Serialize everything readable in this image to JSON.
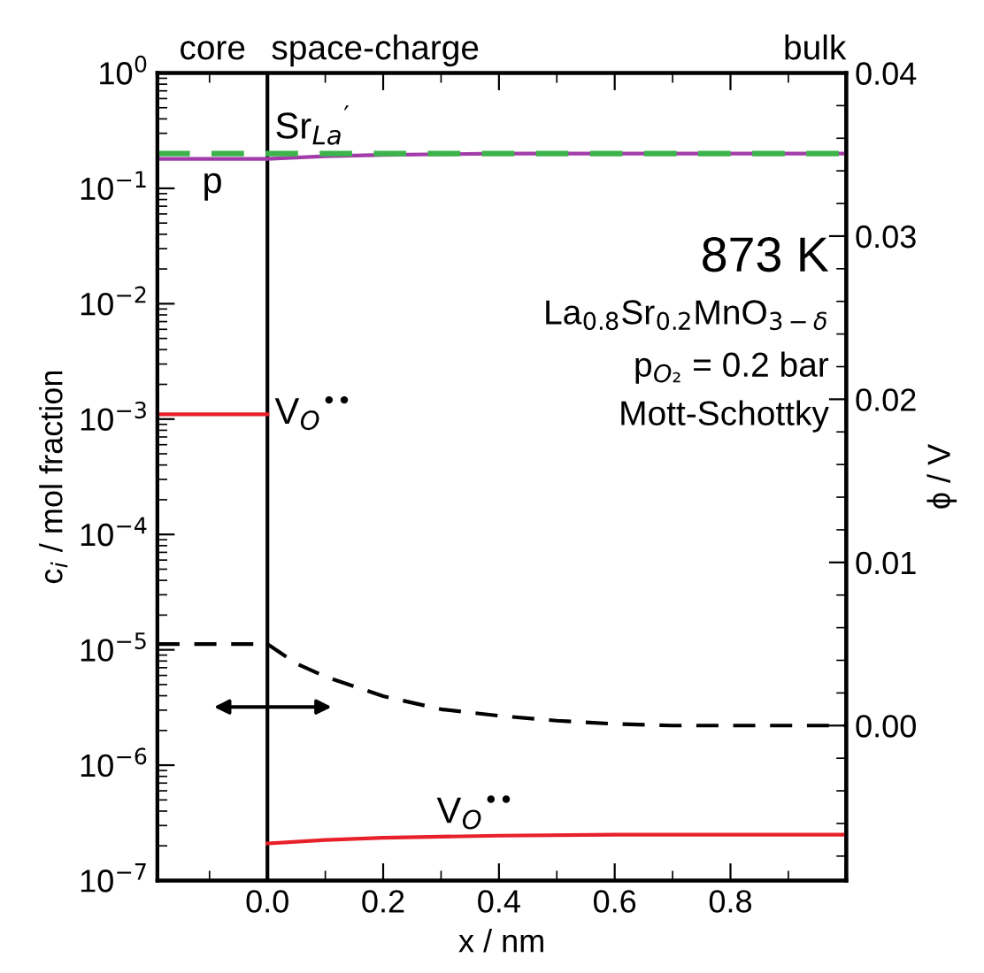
{
  "chart_data": {
    "type": "line",
    "xlabel": "x / nm",
    "ylabel": "c$_{i}$ / mol fraction",
    "y2label": "ϕ / V",
    "xlim": [
      -0.19,
      1.0
    ],
    "xticks": [
      {
        "value": 0.0,
        "label": "0.0"
      },
      0.2,
      0.4,
      0.6,
      0.8
    ],
    "log": "y",
    "ylim": [
      1e-07,
      1
    ],
    "yticks": [
      {
        "value": 1e-07,
        "label": "10$^{−7}$"
      },
      {
        "value": 1e-06,
        "label": "10$^{−6}$"
      },
      {
        "value": 1e-05,
        "label": "10$^{−5}$"
      },
      {
        "value": 0.0001,
        "label": "10$^{−4}$"
      },
      {
        "value": 0.001,
        "label": "10$^{−3}$"
      },
      {
        "value": 0.01,
        "label": "10$^{−2}$"
      },
      {
        "value": 0.1,
        "label": "10$^{−1}$"
      },
      {
        "value": 1,
        "label": "10$^{0}$"
      }
    ],
    "y2lim": [
      -0.0095,
      0.04
    ],
    "y2ticks": [
      {
        "value": 0.0,
        "label": "0.00"
      },
      0.01,
      0.02,
      0.03,
      0.04
    ],
    "grid": false,
    "marker": "none",
    "series": [
      {
        "color": "#3cb44b",
        "line_style": "dashed",
        "x": [
          -0.19,
          0.0,
          0.5,
          1.0
        ],
        "values": [
          0.2,
          0.2,
          0.2,
          0.2
        ]
      },
      {
        "color": "#a23ca8",
        "line_style": "solid",
        "x": [
          -0.19,
          0.0,
          0.1,
          0.2,
          0.4,
          1.0
        ],
        "values": [
          0.18,
          0.18,
          0.19,
          0.195,
          0.2,
          0.2
        ]
      },
      {
        "color": "#e8202a",
        "line_style": "solid",
        "x": [
          -0.19,
          0.0
        ],
        "values": [
          0.0011,
          0.0011
        ]
      },
      {
        "color": "#e8202a",
        "line_style": "solid",
        "x": [
          0.0,
          0.1,
          0.2,
          0.3,
          0.4,
          0.6,
          1.0
        ],
        "values": [
          2.1e-07,
          2.25e-07,
          2.35e-07,
          2.4e-07,
          2.45e-07,
          2.5e-07,
          2.5e-07
        ]
      },
      {
        "color": "#000000",
        "line_style": "dashed",
        "axis": "y2",
        "x": [
          -0.19,
          0.0,
          0.05,
          0.1,
          0.2,
          0.3,
          0.4,
          0.5,
          0.6,
          0.7,
          0.8,
          1.0
        ],
        "values": [
          0.005,
          0.005,
          0.0038,
          0.003,
          0.0018,
          0.001,
          0.0006,
          0.0003,
          0.0001,
          0.0,
          0.0,
          0.0
        ]
      }
    ],
    "ref_lines": [
      {
        "axis": "x",
        "value": 0.0,
        "color": "#000000",
        "line_style": "solid"
      }
    ],
    "annotations": [
      "core",
      "space-charge",
      "bulk",
      {
        "text": "Sr$_{La}$$^{′}$",
        "x": 0.0,
        "y": 0.2
      },
      {
        "text": "p",
        "x": -0.095,
        "y": 0.18
      },
      {
        "text": "V$_{O}$$^{••}$",
        "x": 0.0,
        "y": 0.0011
      },
      {
        "text": "V$_{O}$$^{••}$",
        "x": 0.36,
        "y": 2.45e-07
      },
      "873 K",
      "La$_{0.8}$Sr$_{0.2}$MnO$_{3−δ}$",
      "p$_{O₂}$ = 0.2 bar",
      "Mott-Schottky"
    ]
  }
}
